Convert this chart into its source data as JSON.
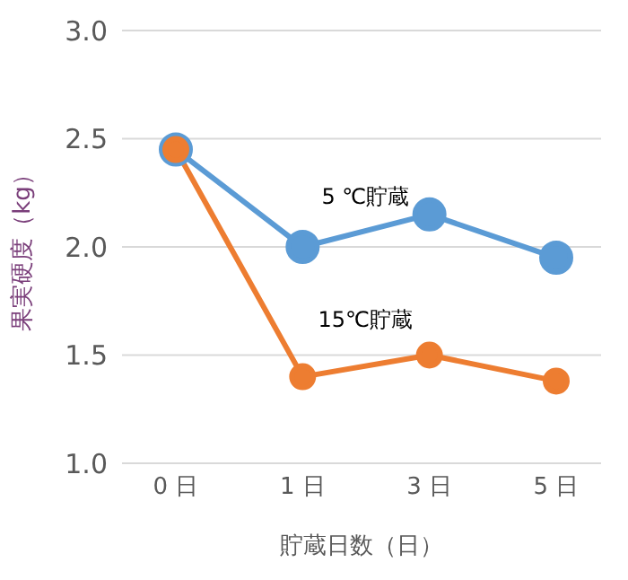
{
  "chart_data": {
    "type": "line",
    "xlabel": "貯蔵日数（日）",
    "ylabel": "果実硬度（kg）",
    "categories": [
      "0 日",
      "1 日",
      "3 日",
      "5 日"
    ],
    "series": [
      {
        "name": "5 ℃貯蔵",
        "color": "#5b9bd5",
        "values": [
          2.45,
          2.0,
          2.15,
          1.95
        ]
      },
      {
        "name": "15℃貯蔵",
        "color": "#ed7d31",
        "values": [
          2.45,
          1.4,
          1.5,
          1.38
        ]
      }
    ],
    "ylim": [
      1.0,
      3.0
    ],
    "yticks": [
      {
        "value": 1.0,
        "label": "1.0"
      },
      {
        "value": 1.5,
        "label": "1.5"
      },
      {
        "value": 2.0,
        "label": "2.0"
      },
      {
        "value": 2.5,
        "label": "2.5"
      },
      {
        "value": 3.0,
        "label": "3.0"
      }
    ],
    "grid": "y",
    "marker": "circle",
    "legend": false
  }
}
